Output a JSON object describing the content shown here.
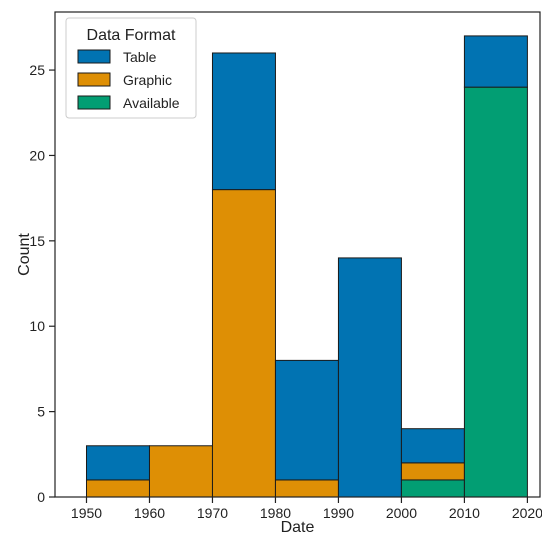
{
  "chart_data": {
    "type": "bar",
    "stacked": true,
    "xlabel": "Date",
    "ylabel": "Count",
    "bin_edges": [
      1950,
      1960,
      1970,
      1980,
      1990,
      2000,
      2010,
      2020
    ],
    "xlim": [
      1945,
      2022
    ],
    "ylim": [
      0,
      28.4
    ],
    "x_ticks": [
      1950,
      1960,
      1970,
      1980,
      1990,
      2000,
      2010,
      2020
    ],
    "y_ticks": [
      0,
      5,
      10,
      15,
      20,
      25
    ],
    "legend": {
      "title": "Data Format",
      "placement": "top-left"
    },
    "series": [
      {
        "name": "Available",
        "color": "#029e73",
        "values": [
          0,
          0,
          0,
          0,
          0,
          1,
          24
        ]
      },
      {
        "name": "Graphic",
        "color": "#de8f05",
        "values": [
          1,
          3,
          18,
          1,
          0,
          1,
          0
        ]
      },
      {
        "name": "Table",
        "color": "#0173b2",
        "values": [
          2,
          0,
          8,
          7,
          14,
          2,
          3
        ]
      }
    ],
    "legend_order": [
      "Table",
      "Graphic",
      "Available"
    ]
  }
}
